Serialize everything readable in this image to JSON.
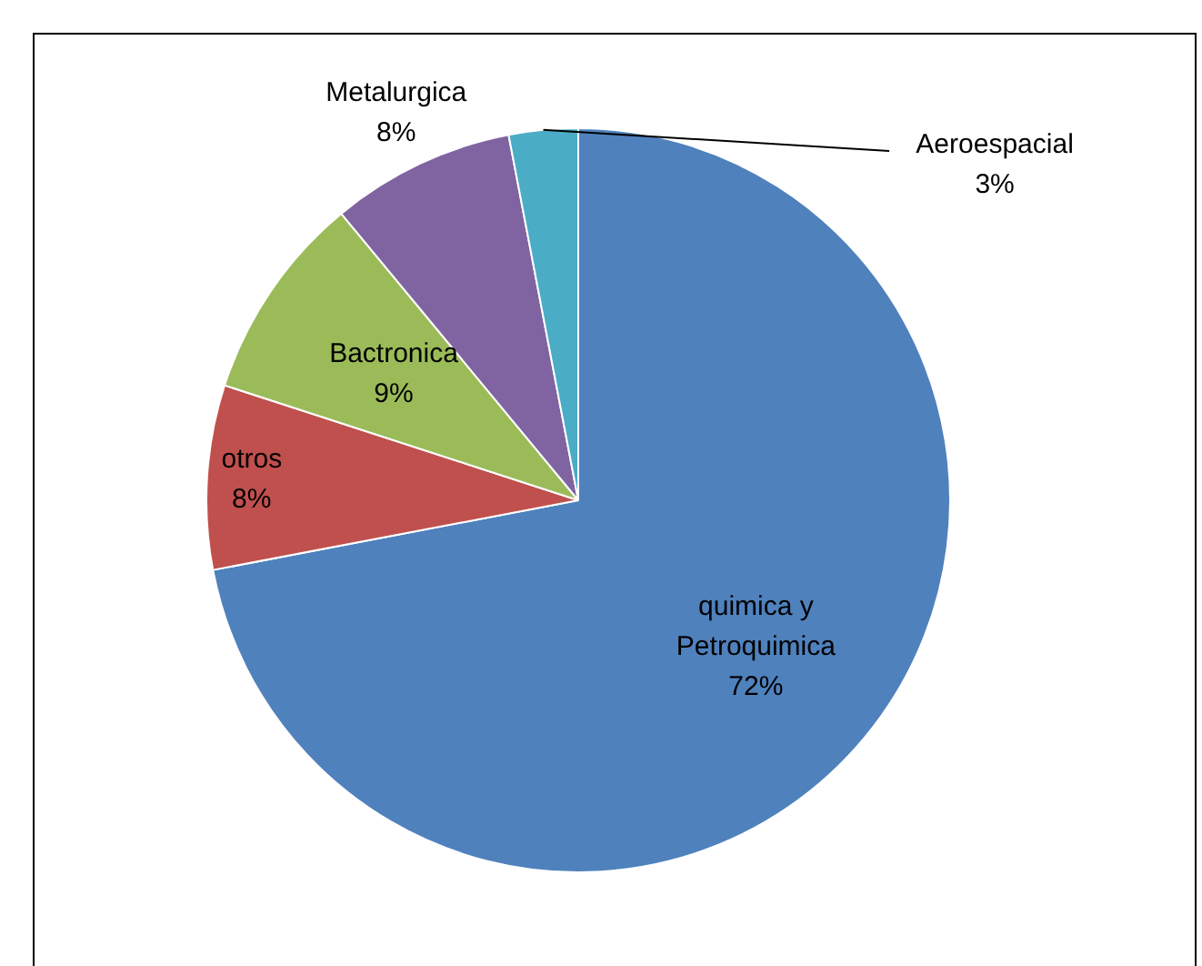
{
  "chart_data": {
    "type": "pie",
    "categories": [
      "quimica y Petroquimica",
      "otros",
      "Bactronica",
      "Metalurgica",
      "Aeroespacial"
    ],
    "values": [
      72,
      8,
      9,
      8,
      3
    ],
    "colors": [
      "#4f81bd",
      "#c0504d",
      "#9bbb59",
      "#8064a2",
      "#4bacc6"
    ],
    "value_labels": [
      "72%",
      "8%",
      "9%",
      "8%",
      "3%"
    ],
    "legend": false
  }
}
